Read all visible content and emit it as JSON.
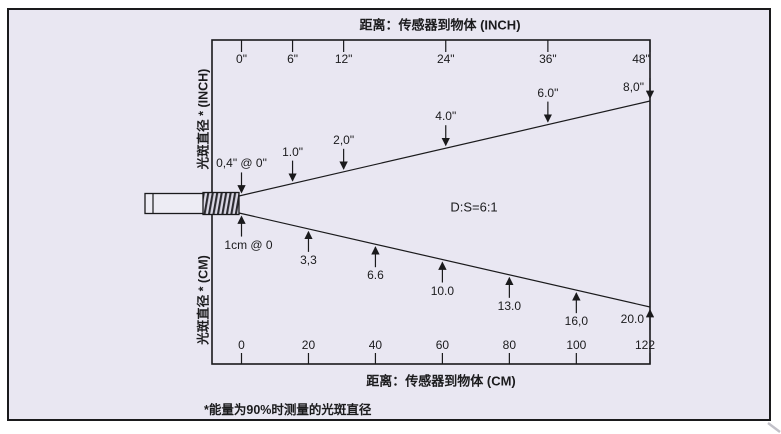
{
  "titles": {
    "top_axis": "距离：传感器到物体 (INCH)",
    "bottom_axis": "距离：传感器到物体 (CM)",
    "left_axis_upper": "光斑直径 * (INCH)",
    "left_axis_lower": "光斑直径 * (CM)",
    "footnote": "*能量为90%时测量的光斑直径"
  },
  "chart_data": {
    "type": "line",
    "title": "距离：传感器到物体 (INCH)",
    "annotation": "D:S=6:1",
    "legend_position": "none",
    "grid": false,
    "inch_axis": {
      "max": 48,
      "ticks": [
        {
          "label": "0\"",
          "value": 0
        },
        {
          "label": "6\"",
          "value": 6
        },
        {
          "label": "12\"",
          "value": 12
        },
        {
          "label": "24\"",
          "value": 24
        },
        {
          "label": "36\"",
          "value": 36
        },
        {
          "label": "48\"",
          "value": 48
        }
      ]
    },
    "cm_axis": {
      "max": 122,
      "ticks": [
        {
          "label": "0",
          "value": 0
        },
        {
          "label": "20",
          "value": 20
        },
        {
          "label": "40",
          "value": 40
        },
        {
          "label": "60",
          "value": 60
        },
        {
          "label": "80",
          "value": 80
        },
        {
          "label": "100",
          "value": 100
        },
        {
          "label": "122",
          "value": 122
        }
      ]
    },
    "upper_series": {
      "name": "spot-diameter-inch",
      "units": "inch",
      "points": [
        {
          "distance": 0,
          "spot": 0.4,
          "label": "0,4\" @ 0\""
        },
        {
          "distance": 6,
          "spot": 1.0,
          "label": "1.0\""
        },
        {
          "distance": 12,
          "spot": 2.0,
          "label": "2,0\""
        },
        {
          "distance": 24,
          "spot": 4.0,
          "label": "4.0\""
        },
        {
          "distance": 36,
          "spot": 6.0,
          "label": "6.0\""
        },
        {
          "distance": 48,
          "spot": 8.0,
          "label": "8,0\""
        }
      ]
    },
    "lower_series": {
      "name": "spot-diameter-cm",
      "units": "cm",
      "points": [
        {
          "distance": 0,
          "spot": 1.0,
          "label": "1cm @ 0"
        },
        {
          "distance": 20,
          "spot": 3.3,
          "label": "3,3"
        },
        {
          "distance": 40,
          "spot": 6.6,
          "label": "6.6"
        },
        {
          "distance": 60,
          "spot": 10.0,
          "label": "10.0"
        },
        {
          "distance": 80,
          "spot": 13.0,
          "label": "13.0"
        },
        {
          "distance": 100,
          "spot": 16.0,
          "label": "16,0"
        },
        {
          "distance": 122,
          "spot": 20.0,
          "label": "20.0"
        }
      ]
    }
  }
}
